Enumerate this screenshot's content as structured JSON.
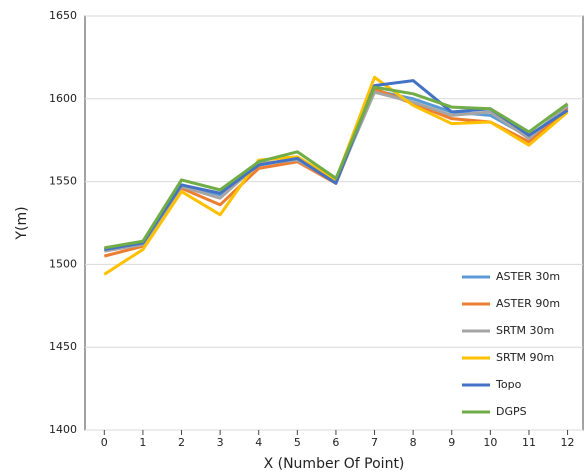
{
  "chart_data": {
    "type": "line",
    "x": [
      0,
      1,
      2,
      3,
      4,
      5,
      6,
      7,
      8,
      9,
      10,
      11,
      12
    ],
    "xlabel": "X (Number Of Point)",
    "ylabel": "Y(m)",
    "xlim": [
      -0.5,
      12.4
    ],
    "xticks": [
      0,
      1,
      2,
      3,
      4,
      5,
      6,
      7,
      8,
      9,
      10,
      11,
      12
    ],
    "ylim": [
      1400,
      1650
    ],
    "yticks": [
      1400,
      1450,
      1500,
      1550,
      1600,
      1650
    ],
    "grid": true,
    "legend": "lower right",
    "series": [
      {
        "name": "ASTER 30m",
        "color": "#5b9bd5",
        "values": [
          1509,
          1513,
          1548,
          1542,
          1560,
          1564,
          1550,
          1605,
          1600,
          1592,
          1590,
          1577,
          1595
        ]
      },
      {
        "name": "ASTER 90m",
        "color": "#ed7d31",
        "values": [
          1505,
          1511,
          1546,
          1536,
          1558,
          1562,
          1549,
          1606,
          1597,
          1588,
          1586,
          1574,
          1594
        ]
      },
      {
        "name": "SRTM 30m",
        "color": "#a5a5a5",
        "values": [
          1508,
          1512,
          1547,
          1540,
          1561,
          1563,
          1550,
          1604,
          1598,
          1590,
          1592,
          1576,
          1596
        ]
      },
      {
        "name": "SRTM 90m",
        "color": "#ffc000",
        "values": [
          1494,
          1509,
          1544,
          1530,
          1563,
          1565,
          1551,
          1613,
          1596,
          1585,
          1586,
          1572,
          1592
        ]
      },
      {
        "name": "Topo",
        "color": "#4472c4",
        "values": [
          1509,
          1513,
          1548,
          1543,
          1560,
          1564,
          1549,
          1608,
          1611,
          1592,
          1594,
          1578,
          1593
        ]
      },
      {
        "name": "DGPS",
        "color": "#70ad47",
        "values": [
          1510,
          1514,
          1551,
          1545,
          1562,
          1568,
          1552,
          1607,
          1603,
          1595,
          1594,
          1580,
          1597
        ]
      }
    ]
  }
}
